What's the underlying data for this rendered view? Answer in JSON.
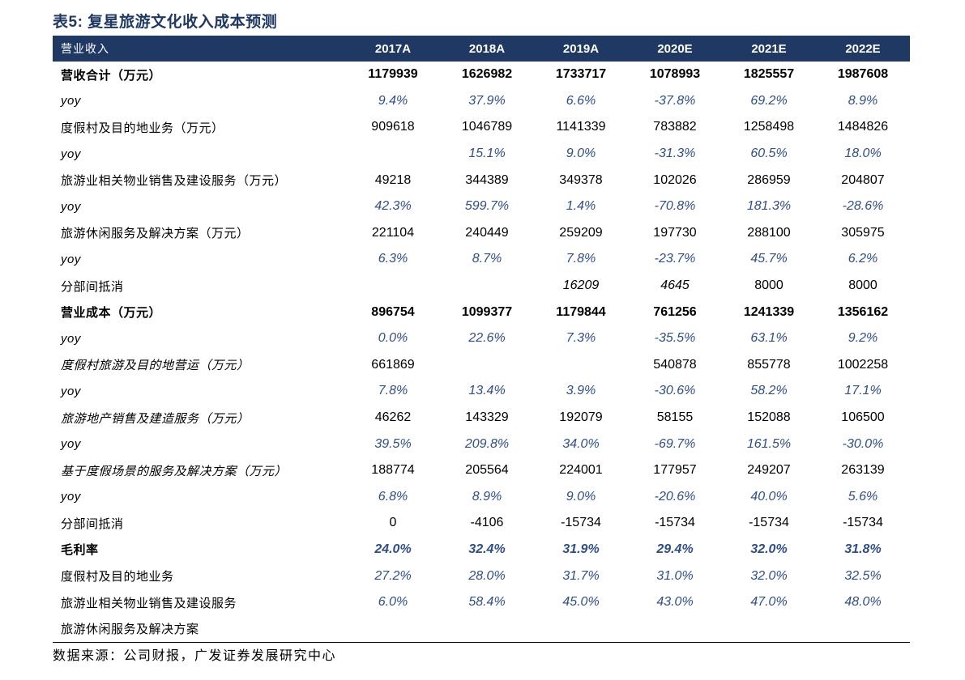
{
  "title": "表5: 复星旅游文化收入成本预测",
  "header": {
    "label": "营业收入",
    "years": [
      "2017A",
      "2018A",
      "2019A",
      "2020E",
      "2021E",
      "2022E"
    ]
  },
  "rows": [
    {
      "label": "营收合计（万元）",
      "values": [
        "1179939",
        "1626982",
        "1733717",
        "1078993",
        "1825557",
        "1987608"
      ]
    },
    {
      "label": "yoy",
      "values": [
        "9.4%",
        "37.9%",
        "6.6%",
        "-37.8%",
        "69.2%",
        "8.9%"
      ]
    },
    {
      "label": "度假村及目的地业务（万元）",
      "values": [
        "909618",
        "1046789",
        "1141339",
        "783882",
        "1258498",
        "1484826"
      ]
    },
    {
      "label": "yoy",
      "values": [
        "",
        "15.1%",
        "9.0%",
        "-31.3%",
        "60.5%",
        "18.0%"
      ]
    },
    {
      "label": "旅游业相关物业销售及建设服务（万元）",
      "values": [
        "49218",
        "344389",
        "349378",
        "102026",
        "286959",
        "204807"
      ]
    },
    {
      "label": "yoy",
      "values": [
        "42.3%",
        "599.7%",
        "1.4%",
        "-70.8%",
        "181.3%",
        "-28.6%"
      ]
    },
    {
      "label": "旅游休闲服务及解决方案（万元）",
      "values": [
        "221104",
        "240449",
        "259209",
        "197730",
        "288100",
        "305975"
      ]
    },
    {
      "label": "yoy",
      "values": [
        "6.3%",
        "8.7%",
        "7.8%",
        "-23.7%",
        "45.7%",
        "6.2%"
      ]
    },
    {
      "label": "分部间抵消",
      "values": [
        "",
        "",
        "16209",
        "4645",
        "8000",
        "8000"
      ]
    },
    {
      "label": "营业成本（万元）",
      "values": [
        "896754",
        "1099377",
        "1179844",
        "761256",
        "1241339",
        "1356162"
      ]
    },
    {
      "label": "yoy",
      "values": [
        "0.0%",
        "22.6%",
        "7.3%",
        "-35.5%",
        "63.1%",
        "9.2%"
      ]
    },
    {
      "label": "度假村旅游及目的地营运（万元）",
      "values": [
        "661869",
        "",
        "",
        "540878",
        "855778",
        "1002258"
      ]
    },
    {
      "label": "yoy",
      "values": [
        "7.8%",
        "13.4%",
        "3.9%",
        "-30.6%",
        "58.2%",
        "17.1%"
      ]
    },
    {
      "label": "旅游地产销售及建造服务（万元）",
      "values": [
        "46262",
        "143329",
        "192079",
        "58155",
        "152088",
        "106500"
      ]
    },
    {
      "label": "yoy",
      "values": [
        "39.5%",
        "209.8%",
        "34.0%",
        "-69.7%",
        "161.5%",
        "-30.0%"
      ]
    },
    {
      "label": "基于度假场景的服务及解决方案（万元）",
      "values": [
        "188774",
        "205564",
        "224001",
        "177957",
        "249207",
        "263139"
      ]
    },
    {
      "label": "yoy",
      "values": [
        "6.8%",
        "8.9%",
        "9.0%",
        "-20.6%",
        "40.0%",
        "5.6%"
      ]
    },
    {
      "label": "分部间抵消",
      "values": [
        "0",
        "-4106",
        "-15734",
        "-15734",
        "-15734",
        "-15734"
      ]
    },
    {
      "label": "毛利率",
      "values": [
        "24.0%",
        "32.4%",
        "31.9%",
        "29.4%",
        "32.0%",
        "31.8%"
      ]
    },
    {
      "label": "度假村及目的地业务",
      "values": [
        "27.2%",
        "28.0%",
        "31.7%",
        "31.0%",
        "32.0%",
        "32.5%"
      ]
    },
    {
      "label": "旅游业相关物业销售及建设服务",
      "values": [
        "6.0%",
        "58.4%",
        "45.0%",
        "43.0%",
        "47.0%",
        "48.0%"
      ]
    },
    {
      "label": "旅游休闲服务及解决方案",
      "values": [
        "",
        "",
        "",
        "",
        "",
        ""
      ]
    }
  ],
  "source": "数据来源：公司财报，广发证券发展研究中心",
  "colors": {
    "header_bg": "#1f3864",
    "title": "#1f3864",
    "accent_blue": "#2f4e8c"
  }
}
